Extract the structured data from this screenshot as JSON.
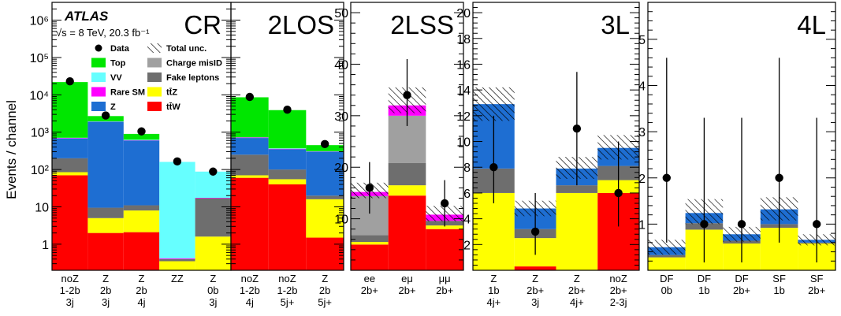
{
  "figure": {
    "ylabel": "Events / channel",
    "experiment": "ATLAS",
    "energy_label": "√s = 8 TeV, 20.3 fb⁻¹"
  },
  "legend": {
    "left": [
      {
        "label": "Data",
        "kind": "dot"
      },
      {
        "label": "Top",
        "key": "top"
      },
      {
        "label": "VV",
        "key": "vv"
      },
      {
        "label": "Rare SM",
        "key": "rare"
      },
      {
        "label": "Z",
        "key": "z"
      }
    ],
    "right": [
      {
        "label": "Total unc.",
        "kind": "hatch"
      },
      {
        "label": "Charge misID",
        "key": "qmis"
      },
      {
        "label": "Fake leptons",
        "key": "fake"
      },
      {
        "label": "tt̄Z",
        "key": "ttz"
      },
      {
        "label": "tt̄W",
        "key": "ttw"
      }
    ]
  },
  "colors": {
    "ttw": "#ff0000",
    "ttz": "#ffff00",
    "fake": "#6e6e6e",
    "qmis": "#a0a0a0",
    "z": "#1e6ed2",
    "rare": "#ff00ff",
    "vv": "#66ffff",
    "top": "#00e600"
  },
  "chart_data": [
    {
      "type": "bar",
      "stacked": true,
      "title": "CR",
      "yscale": "log",
      "ylim": [
        0.2,
        3000000
      ],
      "yticks": [
        "1",
        "10",
        "10²",
        "10³",
        "10⁴",
        "10⁵",
        "10⁶"
      ],
      "categories": [
        [
          "noZ",
          "1-2b",
          "3j"
        ],
        [
          "Z",
          "2b",
          "3j"
        ],
        [
          "Z",
          "2b",
          "4j"
        ],
        [
          "ZZ"
        ],
        [
          "Z",
          "0b",
          "3j"
        ]
      ],
      "stacks": {
        "ttw": [
          70,
          2,
          2.1,
          0,
          0
        ],
        "ttz": [
          85,
          5,
          8,
          0.35,
          1.6
        ],
        "fake": [
          200,
          9.5,
          11,
          0.4,
          17
        ],
        "z": [
          680,
          1900,
          600,
          0.4,
          17
        ],
        "rare": [
          700,
          1920,
          610,
          0.42,
          17.5
        ],
        "vv": [
          710,
          1950,
          630,
          160,
          88
        ],
        "top": [
          22000,
          2700,
          900,
          160,
          88
        ]
      },
      "data": [
        23000,
        2800,
        1050,
        165,
        88
      ],
      "data_err": [
        0,
        0,
        0,
        0,
        0
      ]
    },
    {
      "type": "bar",
      "stacked": true,
      "title": "2LOS",
      "yscale": "log",
      "ylim": [
        0.2,
        3000000
      ],
      "categories": [
        [
          "noZ",
          "1-2b",
          "4j"
        ],
        [
          "noZ",
          "1-2b",
          "5j+"
        ],
        [
          "Z",
          "2b",
          "5j+"
        ]
      ],
      "stacks": {
        "ttw": [
          60,
          40,
          1.5
        ],
        "ttz": [
          70,
          55,
          16
        ],
        "fake": [
          250,
          100,
          20
        ],
        "z": [
          700,
          350,
          300
        ],
        "rare": [
          720,
          360,
          305
        ],
        "vv": [
          730,
          370,
          310
        ],
        "top": [
          8600,
          3900,
          450
        ]
      },
      "data": [
        8800,
        4000,
        480
      ],
      "data_err": [
        0,
        0,
        0
      ]
    },
    {
      "type": "bar",
      "stacked": true,
      "title": "2LSS",
      "yscale": "linear",
      "ylim": [
        0,
        52
      ],
      "yticks": [
        10,
        20,
        30,
        40,
        50
      ],
      "categories": [
        [
          "ee",
          "2b+"
        ],
        [
          "eμ",
          "2b+"
        ],
        [
          "μμ",
          "2b+"
        ]
      ],
      "stacks": {
        "ttw": [
          5,
          14.5,
          8
        ],
        "ttz": [
          5.5,
          16.5,
          8.7
        ],
        "fake": [
          6.8,
          20.8,
          9.6
        ],
        "qmis": [
          14.4,
          30,
          9.6
        ],
        "rare": [
          15.2,
          32,
          10.8
        ],
        "vv": [
          15.2,
          32,
          10.8
        ],
        "top": [
          15.2,
          32,
          10.8
        ]
      },
      "unc": [
        [
          14,
          17
        ],
        [
          30.5,
          35.5
        ],
        [
          9.5,
          12.5
        ]
      ],
      "data": [
        16,
        34,
        13
      ],
      "data_err": [
        [
          11,
          21
        ],
        [
          28,
          41
        ],
        [
          8.5,
          17.5
        ]
      ]
    },
    {
      "type": "bar",
      "stacked": true,
      "title": "3L",
      "yscale": "linear",
      "ylim": [
        0,
        20.8
      ],
      "yticks": [
        2,
        4,
        6,
        8,
        10,
        12,
        14,
        16,
        18,
        20
      ],
      "categories": [
        [
          "Z",
          "1b",
          "4j+"
        ],
        [
          "Z",
          "2b+",
          "3j"
        ],
        [
          "Z",
          "2b+",
          "4j+"
        ],
        [
          "noZ",
          "2b+",
          "2-3j"
        ]
      ],
      "stacks": {
        "ttw": [
          0,
          0.3,
          0,
          6
        ],
        "ttz": [
          6,
          2.5,
          6,
          7
        ],
        "fake": [
          7.9,
          3.2,
          6.6,
          8.1
        ],
        "rare": [
          9.4,
          4.3,
          7.4,
          9.3
        ],
        "vv": [
          12.8,
          4.8,
          7.9,
          9.5
        ],
        "z": [
          12.9,
          4.8,
          7.9,
          9.5
        ],
        "top": [
          12.9,
          4.8,
          7.9,
          9.5
        ]
      },
      "unc": [
        [
          11.6,
          14.2
        ],
        [
          4.2,
          5.4
        ],
        [
          7.1,
          8.8
        ],
        [
          8.6,
          10.5
        ]
      ],
      "data": [
        8,
        3,
        11,
        6
      ],
      "data_err": [
        [
          5.2,
          12
        ],
        [
          1.2,
          6
        ],
        [
          6.6,
          15.4
        ],
        [
          3.4,
          10
        ]
      ]
    },
    {
      "type": "bar",
      "stacked": true,
      "title": "4L",
      "yscale": "linear",
      "ylim": [
        0,
        5.8
      ],
      "yticks": [
        1,
        2,
        3,
        4,
        5
      ],
      "categories": [
        [
          "DF",
          "0b"
        ],
        [
          "DF",
          "1b"
        ],
        [
          "DF",
          "2b+"
        ],
        [
          "SF",
          "1b"
        ],
        [
          "SF",
          "2b+"
        ]
      ],
      "stacks": {
        "ttw": [
          0,
          0,
          0,
          0,
          0
        ],
        "ttz": [
          0.28,
          0.88,
          0.58,
          0.92,
          0.58
        ],
        "fake": [
          0.33,
          1.02,
          0.64,
          1.0,
          0.6
        ],
        "rare": [
          0.42,
          1.2,
          0.76,
          1.12,
          0.64
        ],
        "vv": [
          0.5,
          1.24,
          0.78,
          1.32,
          0.66
        ],
        "z": [
          0.5,
          1.24,
          0.78,
          1.32,
          0.66
        ],
        "top": [
          0.5,
          1.24,
          0.78,
          1.32,
          0.66
        ]
      },
      "unc": [
        [
          0.34,
          0.66
        ],
        [
          1.0,
          1.54
        ],
        [
          0.62,
          0.94
        ],
        [
          1.08,
          1.58
        ],
        [
          0.54,
          0.78
        ]
      ],
      "data": [
        2,
        1,
        1,
        2,
        1
      ],
      "data_err": [
        [
          0.6,
          4.6
        ],
        [
          0.17,
          3.3
        ],
        [
          0.17,
          3.3
        ],
        [
          0.6,
          4.6
        ],
        [
          0.17,
          3.3
        ]
      ]
    }
  ]
}
